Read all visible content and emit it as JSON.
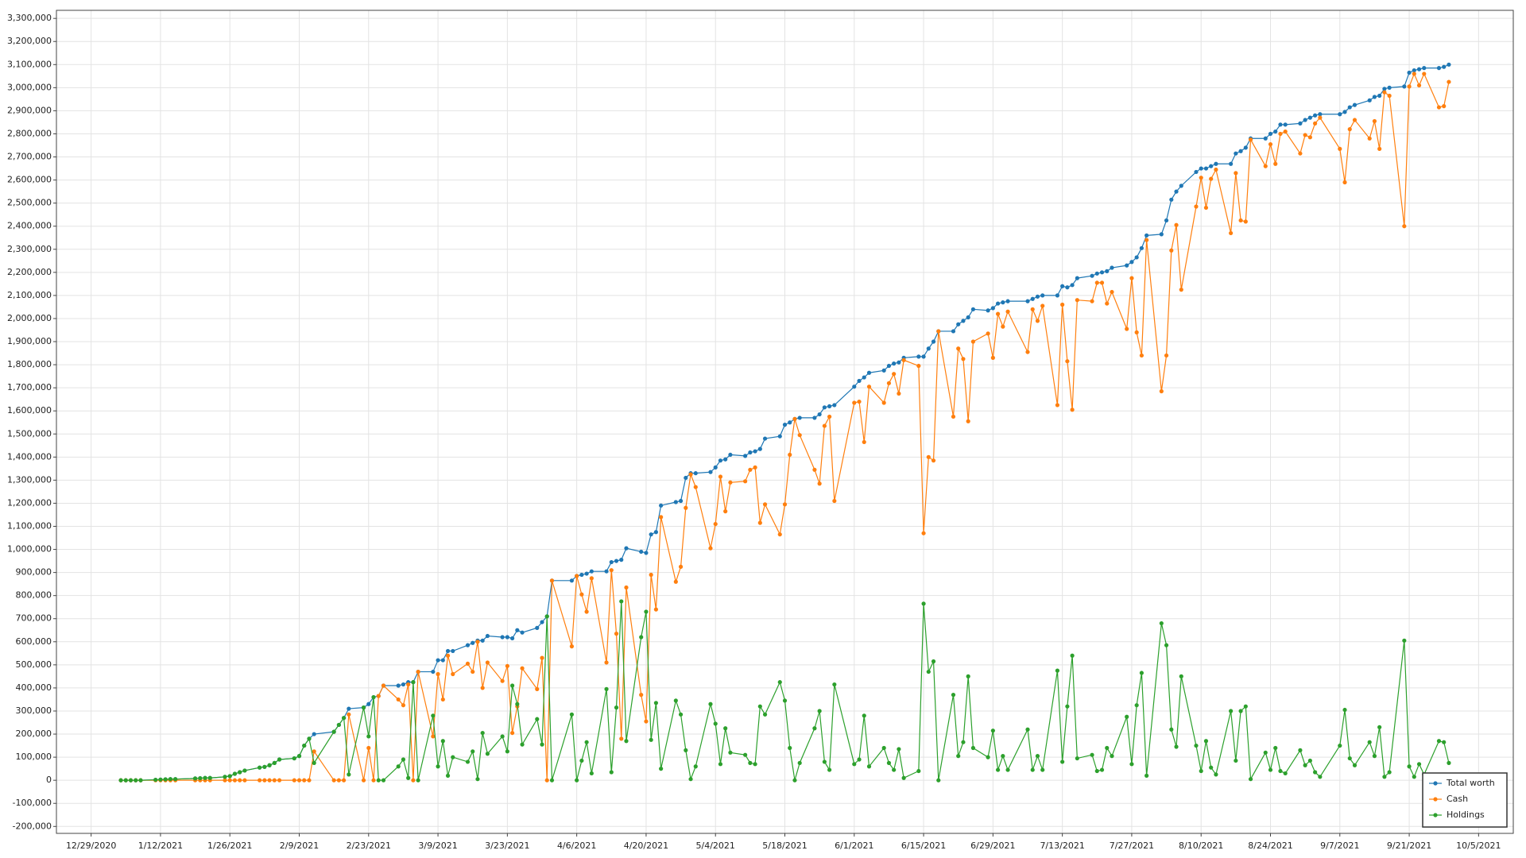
{
  "chart_data": {
    "type": "line",
    "x": [
      "1/4/2021",
      "1/5/2021",
      "1/6/2021",
      "1/7/2021",
      "1/8/2021",
      "1/11/2021",
      "1/12/2021",
      "1/13/2021",
      "1/14/2021",
      "1/15/2021",
      "1/19/2021",
      "1/20/2021",
      "1/21/2021",
      "1/22/2021",
      "1/25/2021",
      "1/26/2021",
      "1/27/2021",
      "1/28/2021",
      "1/29/2021",
      "2/1/2021",
      "2/2/2021",
      "2/3/2021",
      "2/4/2021",
      "2/5/2021",
      "2/8/2021",
      "2/9/2021",
      "2/10/2021",
      "2/11/2021",
      "2/12/2021",
      "2/16/2021",
      "2/17/2021",
      "2/18/2021",
      "2/19/2021",
      "2/22/2021",
      "2/23/2021",
      "2/24/2021",
      "2/25/2021",
      "2/26/2021",
      "3/1/2021",
      "3/2/2021",
      "3/3/2021",
      "3/4/2021",
      "3/5/2021",
      "3/8/2021",
      "3/9/2021",
      "3/10/2021",
      "3/11/2021",
      "3/12/2021",
      "3/15/2021",
      "3/16/2021",
      "3/17/2021",
      "3/18/2021",
      "3/19/2021",
      "3/22/2021",
      "3/23/2021",
      "3/24/2021",
      "3/25/2021",
      "3/26/2021",
      "3/29/2021",
      "3/30/2021",
      "3/31/2021",
      "4/1/2021",
      "4/5/2021",
      "4/6/2021",
      "4/7/2021",
      "4/8/2021",
      "4/9/2021",
      "4/12/2021",
      "4/13/2021",
      "4/14/2021",
      "4/15/2021",
      "4/16/2021",
      "4/19/2021",
      "4/20/2021",
      "4/21/2021",
      "4/22/2021",
      "4/23/2021",
      "4/26/2021",
      "4/27/2021",
      "4/28/2021",
      "4/29/2021",
      "4/30/2021",
      "5/3/2021",
      "5/4/2021",
      "5/5/2021",
      "5/6/2021",
      "5/7/2021",
      "5/10/2021",
      "5/11/2021",
      "5/12/2021",
      "5/13/2021",
      "5/14/2021",
      "5/17/2021",
      "5/18/2021",
      "5/19/2021",
      "5/20/2021",
      "5/21/2021",
      "5/24/2021",
      "5/25/2021",
      "5/26/2021",
      "5/27/2021",
      "5/28/2021",
      "6/1/2021",
      "6/2/2021",
      "6/3/2021",
      "6/4/2021",
      "6/7/2021",
      "6/8/2021",
      "6/9/2021",
      "6/10/2021",
      "6/11/2021",
      "6/14/2021",
      "6/15/2021",
      "6/16/2021",
      "6/17/2021",
      "6/18/2021",
      "6/21/2021",
      "6/22/2021",
      "6/23/2021",
      "6/24/2021",
      "6/25/2021",
      "6/28/2021",
      "6/29/2021",
      "6/30/2021",
      "7/1/2021",
      "7/2/2021",
      "7/6/2021",
      "7/7/2021",
      "7/8/2021",
      "7/9/2021",
      "7/12/2021",
      "7/13/2021",
      "7/14/2021",
      "7/15/2021",
      "7/16/2021",
      "7/19/2021",
      "7/20/2021",
      "7/21/2021",
      "7/22/2021",
      "7/23/2021",
      "7/26/2021",
      "7/27/2021",
      "7/28/2021",
      "7/29/2021",
      "7/30/2021",
      "8/2/2021",
      "8/3/2021",
      "8/4/2021",
      "8/5/2021",
      "8/6/2021",
      "8/9/2021",
      "8/10/2021",
      "8/11/2021",
      "8/12/2021",
      "8/13/2021",
      "8/16/2021",
      "8/17/2021",
      "8/18/2021",
      "8/19/2021",
      "8/20/2021",
      "8/23/2021",
      "8/24/2021",
      "8/25/2021",
      "8/26/2021",
      "8/27/2021",
      "8/30/2021",
      "8/31/2021",
      "9/1/2021",
      "9/2/2021",
      "9/3/2021",
      "9/7/2021",
      "9/8/2021",
      "9/9/2021",
      "9/10/2021",
      "9/13/2021",
      "9/14/2021",
      "9/15/2021",
      "9/16/2021",
      "9/17/2021",
      "9/20/2021",
      "9/21/2021",
      "9/22/2021",
      "9/23/2021",
      "9/24/2021",
      "9/27/2021",
      "9/28/2021",
      "9/29/2021"
    ],
    "series": [
      {
        "name": "Total worth",
        "color": "#1f77b4",
        "values": [
          0,
          0,
          0,
          0,
          0,
          2000,
          3000,
          4000,
          5000,
          5000,
          8000,
          9000,
          10000,
          10000,
          15000,
          18000,
          28000,
          35000,
          42000,
          55000,
          58000,
          65000,
          75000,
          90000,
          95000,
          105000,
          150000,
          180000,
          200000,
          210000,
          240000,
          270000,
          310000,
          315000,
          330000,
          360000,
          365000,
          410000,
          410000,
          415000,
          425000,
          425000,
          470000,
          470000,
          520000,
          520000,
          560000,
          560000,
          585000,
          595000,
          605000,
          605000,
          625000,
          620000,
          620000,
          615000,
          650000,
          640000,
          660000,
          685000,
          710000,
          865000,
          865000,
          885000,
          890000,
          895000,
          905000,
          905000,
          945000,
          950000,
          955000,
          1005000,
          990000,
          985000,
          1065000,
          1075000,
          1190000,
          1205000,
          1210000,
          1310000,
          1330000,
          1330000,
          1335000,
          1355000,
          1385000,
          1390000,
          1410000,
          1405000,
          1420000,
          1425000,
          1435000,
          1480000,
          1490000,
          1540000,
          1550000,
          1565000,
          1570000,
          1570000,
          1585000,
          1615000,
          1620000,
          1625000,
          1705000,
          1730000,
          1745000,
          1765000,
          1775000,
          1795000,
          1805000,
          1810000,
          1830000,
          1835000,
          1835000,
          1870000,
          1900000,
          1945000,
          1945000,
          1975000,
          1990000,
          2005000,
          2040000,
          2035000,
          2045000,
          2065000,
          2070000,
          2075000,
          2075000,
          2085000,
          2095000,
          2100000,
          2100000,
          2140000,
          2135000,
          2145000,
          2175000,
          2185000,
          2195000,
          2200000,
          2205000,
          2220000,
          2230000,
          2245000,
          2265000,
          2305000,
          2360000,
          2365000,
          2425000,
          2515000,
          2550000,
          2575000,
          2635000,
          2650000,
          2650000,
          2660000,
          2670000,
          2670000,
          2715000,
          2725000,
          2740000,
          2780000,
          2780000,
          2800000,
          2810000,
          2840000,
          2840000,
          2845000,
          2860000,
          2870000,
          2880000,
          2885000,
          2885000,
          2895000,
          2915000,
          2925000,
          2945000,
          2960000,
          2965000,
          2995000,
          3000000,
          3005000,
          3065000,
          3075000,
          3080000,
          3085000,
          3085000,
          3090000,
          3100000
        ]
      },
      {
        "name": "Cash",
        "color": "#ff7f0e",
        "values": [
          0,
          0,
          0,
          0,
          0,
          0,
          0,
          0,
          0,
          0,
          0,
          0,
          0,
          0,
          0,
          0,
          0,
          0,
          0,
          0,
          0,
          0,
          0,
          0,
          0,
          0,
          0,
          0,
          125000,
          0,
          0,
          0,
          285000,
          0,
          140000,
          0,
          365000,
          410000,
          350000,
          325000,
          415000,
          0,
          470000,
          190000,
          460000,
          350000,
          540000,
          460000,
          505000,
          470000,
          600000,
          400000,
          510000,
          430000,
          495000,
          205000,
          320000,
          485000,
          395000,
          530000,
          0,
          865000,
          580000,
          885000,
          805000,
          730000,
          875000,
          510000,
          910000,
          635000,
          180000,
          835000,
          370000,
          255000,
          890000,
          740000,
          1140000,
          860000,
          925000,
          1180000,
          1325000,
          1270000,
          1005000,
          1110000,
          1315000,
          1165000,
          1290000,
          1295000,
          1345000,
          1355000,
          1115000,
          1195000,
          1065000,
          1195000,
          1410000,
          1565000,
          1495000,
          1345000,
          1285000,
          1535000,
          1575000,
          1210000,
          1635000,
          1640000,
          1465000,
          1705000,
          1635000,
          1720000,
          1760000,
          1675000,
          1820000,
          1795000,
          1070000,
          1400000,
          1385000,
          1945000,
          1575000,
          1870000,
          1825000,
          1555000,
          1900000,
          1935000,
          1830000,
          2020000,
          1965000,
          2030000,
          1855000,
          2040000,
          1990000,
          2055000,
          1625000,
          2060000,
          1815000,
          1605000,
          2080000,
          2075000,
          2155000,
          2155000,
          2065000,
          2115000,
          1955000,
          2175000,
          1940000,
          1840000,
          2340000,
          1685000,
          1840000,
          2295000,
          2405000,
          2125000,
          2485000,
          2610000,
          2480000,
          2605000,
          2645000,
          2370000,
          2630000,
          2425000,
          2420000,
          2775000,
          2660000,
          2755000,
          2670000,
          2800000,
          2810000,
          2715000,
          2795000,
          2785000,
          2845000,
          2870000,
          2735000,
          2590000,
          2820000,
          2860000,
          2780000,
          2855000,
          2735000,
          2980000,
          2965000,
          2400000,
          3005000,
          3060000,
          3010000,
          3060000,
          2915000,
          2920000,
          3025000
        ]
      },
      {
        "name": "Holdings",
        "color": "#2ca02c",
        "values": [
          0,
          0,
          0,
          0,
          0,
          2000,
          3000,
          4000,
          5000,
          5000,
          8000,
          9000,
          10000,
          10000,
          15000,
          18000,
          28000,
          35000,
          42000,
          55000,
          58000,
          65000,
          75000,
          90000,
          95000,
          105000,
          150000,
          180000,
          75000,
          210000,
          240000,
          270000,
          25000,
          315000,
          190000,
          360000,
          0,
          0,
          60000,
          90000,
          10000,
          425000,
          0,
          280000,
          60000,
          170000,
          20000,
          100000,
          80000,
          125000,
          5000,
          205000,
          115000,
          190000,
          125000,
          410000,
          330000,
          155000,
          265000,
          155000,
          710000,
          0,
          285000,
          0,
          85000,
          165000,
          30000,
          395000,
          35000,
          315000,
          775000,
          170000,
          620000,
          730000,
          175000,
          335000,
          50000,
          345000,
          285000,
          130000,
          5000,
          60000,
          330000,
          245000,
          70000,
          225000,
          120000,
          110000,
          75000,
          70000,
          320000,
          285000,
          425000,
          345000,
          140000,
          0,
          75000,
          225000,
          300000,
          80000,
          45000,
          415000,
          70000,
          90000,
          280000,
          60000,
          140000,
          75000,
          45000,
          135000,
          10000,
          40000,
          765000,
          470000,
          515000,
          0,
          370000,
          105000,
          165000,
          450000,
          140000,
          100000,
          215000,
          45000,
          105000,
          45000,
          220000,
          45000,
          105000,
          45000,
          475000,
          80000,
          320000,
          540000,
          95000,
          110000,
          40000,
          45000,
          140000,
          105000,
          275000,
          70000,
          325000,
          465000,
          20000,
          680000,
          585000,
          220000,
          145000,
          450000,
          150000,
          40000,
          170000,
          55000,
          25000,
          300000,
          85000,
          300000,
          320000,
          5000,
          120000,
          45000,
          140000,
          40000,
          30000,
          130000,
          65000,
          85000,
          35000,
          15000,
          150000,
          305000,
          95000,
          65000,
          165000,
          105000,
          230000,
          15000,
          35000,
          605000,
          60000,
          15000,
          70000,
          25000,
          170000,
          165000,
          75000
        ]
      }
    ],
    "xlim": [
      "12/22/2020",
      "10/12/2021"
    ],
    "xticks": [
      "12/29/2020",
      "1/12/2021",
      "1/26/2021",
      "2/9/2021",
      "2/23/2021",
      "3/9/2021",
      "3/23/2021",
      "4/6/2021",
      "4/20/2021",
      "5/4/2021",
      "5/18/2021",
      "6/1/2021",
      "6/15/2021",
      "6/29/2021",
      "7/13/2021",
      "7/27/2021",
      "8/10/2021",
      "8/24/2021",
      "9/7/2021",
      "9/21/2021",
      "10/5/2021"
    ],
    "ylim": [
      -230000,
      3335000
    ],
    "yticks": [
      {
        "value": -200000,
        "label": "-200,000"
      },
      {
        "value": -100000,
        "label": "-100,000"
      },
      0,
      {
        "value": 100000,
        "label": "100,000"
      },
      {
        "value": 200000,
        "label": "200,000"
      },
      {
        "value": 300000,
        "label": "300,000"
      },
      {
        "value": 400000,
        "label": "400,000"
      },
      {
        "value": 500000,
        "label": "500,000"
      },
      {
        "value": 600000,
        "label": "600,000"
      },
      {
        "value": 700000,
        "label": "700,000"
      },
      {
        "value": 800000,
        "label": "800,000"
      },
      {
        "value": 900000,
        "label": "900,000"
      },
      {
        "value": 1000000,
        "label": "1,000,000"
      },
      {
        "value": 1100000,
        "label": "1,100,000"
      },
      {
        "value": 1200000,
        "label": "1,200,000"
      },
      {
        "value": 1300000,
        "label": "1,300,000"
      },
      {
        "value": 1400000,
        "label": "1,400,000"
      },
      {
        "value": 1500000,
        "label": "1,500,000"
      },
      {
        "value": 1600000,
        "label": "1,600,000"
      },
      {
        "value": 1700000,
        "label": "1,700,000"
      },
      {
        "value": 1800000,
        "label": "1,800,000"
      },
      {
        "value": 1900000,
        "label": "1,900,000"
      },
      {
        "value": 2000000,
        "label": "2,000,000"
      },
      {
        "value": 2100000,
        "label": "2,100,000"
      },
      {
        "value": 2200000,
        "label": "2,200,000"
      },
      {
        "value": 2300000,
        "label": "2,300,000"
      },
      {
        "value": 2400000,
        "label": "2,400,000"
      },
      {
        "value": 2500000,
        "label": "2,500,000"
      },
      {
        "value": 2600000,
        "label": "2,600,000"
      },
      {
        "value": 2700000,
        "label": "2,700,000"
      },
      {
        "value": 2800000,
        "label": "2,800,000"
      },
      {
        "value": 2900000,
        "label": "2,900,000"
      },
      {
        "value": 3000000,
        "label": "3,000,000"
      },
      {
        "value": 3100000,
        "label": "3,100,000"
      },
      {
        "value": 3200000,
        "label": "3,200,000"
      },
      {
        "value": 3300000,
        "label": "3,300,000"
      }
    ],
    "grid": true,
    "legend": "lower right"
  }
}
